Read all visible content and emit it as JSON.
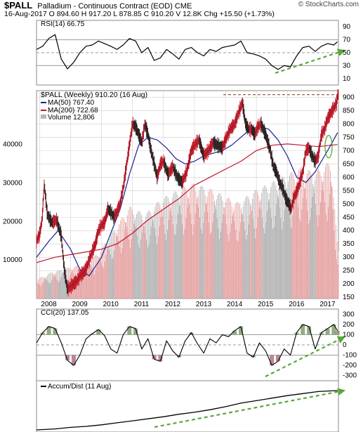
{
  "header": {
    "symbol": "$PALL",
    "name": "Palladium - Continuous Contract (EOD) CME",
    "quote_line": "16-Aug-2017   O 894.60  H 917.20  L 878.85  C 910.20  V 12.8K  Chg +15.50 (+1.73%)",
    "watermark": "© StockCharts.com"
  },
  "colors": {
    "price_up": "#c01a2a",
    "price_down": "#202020",
    "ma50": "#1b1f8f",
    "ma200": "#c0182e",
    "volume_up": "#e7a7a7",
    "volume_down": "#b7b7b7",
    "trend_arrow": "#5aa83a",
    "resistance_line": "#8b2b1a",
    "grid": "#cfcfcf"
  },
  "chart_data": [
    {
      "type": "line",
      "panel": "rsi",
      "legend": "RSI(14) 66.75",
      "yticks": [
        10,
        30,
        50,
        70,
        90
      ],
      "ylim": [
        0,
        100
      ],
      "reference_lines": [
        70,
        30
      ],
      "x": [
        2007.9,
        2008.1,
        2008.3,
        2008.5,
        2008.7,
        2008.9,
        2009.1,
        2009.3,
        2009.5,
        2009.7,
        2009.9,
        2010.1,
        2010.3,
        2010.5,
        2010.7,
        2010.9,
        2011.1,
        2011.3,
        2011.5,
        2011.7,
        2011.9,
        2012.1,
        2012.3,
        2012.5,
        2012.7,
        2012.9,
        2013.1,
        2013.3,
        2013.5,
        2013.7,
        2013.9,
        2014.1,
        2014.3,
        2014.5,
        2014.7,
        2014.9,
        2015.1,
        2015.3,
        2015.5,
        2015.7,
        2015.9,
        2016.1,
        2016.3,
        2016.5,
        2016.7,
        2016.9,
        2017.1,
        2017.3,
        2017.5,
        2017.62
      ],
      "values": [
        55,
        60,
        72,
        78,
        40,
        25,
        35,
        50,
        60,
        62,
        68,
        64,
        60,
        55,
        62,
        72,
        68,
        50,
        58,
        38,
        42,
        55,
        48,
        40,
        55,
        58,
        50,
        45,
        55,
        52,
        58,
        60,
        62,
        68,
        50,
        48,
        45,
        40,
        30,
        24,
        30,
        28,
        45,
        58,
        60,
        52,
        60,
        64,
        62,
        67
      ]
    },
    {
      "type": "line",
      "panel": "price",
      "title": "$PALL (Weekly) 910.20 (16 Aug)",
      "xticks": [
        "2008",
        "2009",
        "2010",
        "2011",
        "2012",
        "2013",
        "2014",
        "2015",
        "2016",
        "2017"
      ],
      "xlim": [
        2007.9,
        2017.65
      ],
      "ylim": [
        145,
        925
      ],
      "yticks": [
        150,
        200,
        250,
        300,
        350,
        400,
        450,
        500,
        550,
        600,
        650,
        700,
        750,
        800,
        850,
        900
      ],
      "volume_ticks": [
        10000,
        20000,
        30000,
        40000
      ],
      "volume_max": 54000,
      "resistance_level": 910,
      "series": [
        {
          "name": "Price",
          "x": [
            2007.9,
            2008.0,
            2008.08,
            2008.15,
            2008.25,
            2008.4,
            2008.55,
            2008.7,
            2008.8,
            2008.9,
            2009.0,
            2009.1,
            2009.2,
            2009.3,
            2009.4,
            2009.5,
            2009.6,
            2009.7,
            2009.8,
            2009.9,
            2010.0,
            2010.1,
            2010.2,
            2010.3,
            2010.4,
            2010.5,
            2010.6,
            2010.7,
            2010.8,
            2010.9,
            2011.0,
            2011.1,
            2011.2,
            2011.3,
            2011.4,
            2011.5,
            2011.6,
            2011.7,
            2011.8,
            2011.9,
            2012.0,
            2012.15,
            2012.3,
            2012.45,
            2012.6,
            2012.75,
            2012.9,
            2013.0,
            2013.15,
            2013.3,
            2013.45,
            2013.6,
            2013.75,
            2013.9,
            2014.0,
            2014.15,
            2014.3,
            2014.45,
            2014.55,
            2014.65,
            2014.75,
            2014.85,
            2014.95,
            2015.05,
            2015.15,
            2015.3,
            2015.45,
            2015.55,
            2015.65,
            2015.75,
            2015.85,
            2015.95,
            2016.05,
            2016.12,
            2016.2,
            2016.35,
            2016.5,
            2016.6,
            2016.7,
            2016.8,
            2016.9,
            2017.0,
            2017.1,
            2017.2,
            2017.3,
            2017.4,
            2017.5,
            2017.6,
            2017.62
          ],
          "values": [
            360,
            385,
            440,
            575,
            460,
            430,
            440,
            380,
            250,
            180,
            190,
            200,
            210,
            230,
            240,
            255,
            290,
            320,
            350,
            400,
            420,
            430,
            480,
            470,
            450,
            470,
            500,
            560,
            640,
            720,
            800,
            790,
            760,
            730,
            800,
            760,
            700,
            650,
            600,
            650,
            660,
            610,
            640,
            600,
            580,
            620,
            700,
            720,
            740,
            680,
            700,
            730,
            720,
            710,
            740,
            780,
            800,
            850,
            880,
            800,
            780,
            780,
            760,
            790,
            800,
            760,
            700,
            640,
            620,
            580,
            560,
            520,
            500,
            480,
            520,
            560,
            620,
            700,
            710,
            680,
            660,
            680,
            760,
            780,
            820,
            840,
            860,
            880,
            910.2
          ]
        },
        {
          "name": "MA(50) 767.40",
          "x": [
            2007.9,
            2008.3,
            2008.6,
            2009.0,
            2009.3,
            2009.6,
            2010.0,
            2010.3,
            2010.6,
            2010.9,
            2011.2,
            2011.5,
            2011.8,
            2012.1,
            2012.4,
            2012.7,
            2013.0,
            2013.3,
            2013.6,
            2013.9,
            2014.2,
            2014.5,
            2014.8,
            2015.1,
            2015.4,
            2015.7,
            2016.0,
            2016.3,
            2016.6,
            2016.9,
            2017.2,
            2017.4,
            2017.62
          ],
          "values": [
            300,
            360,
            400,
            330,
            255,
            230,
            300,
            390,
            480,
            610,
            720,
            750,
            740,
            710,
            670,
            650,
            660,
            680,
            690,
            700,
            720,
            750,
            780,
            790,
            780,
            740,
            680,
            600,
            580,
            620,
            680,
            720,
            767.4
          ]
        },
        {
          "name": "MA(200) 722.68",
          "x": [
            2007.9,
            2008.5,
            2009.0,
            2009.5,
            2010.0,
            2010.5,
            2011.0,
            2011.5,
            2012.0,
            2012.5,
            2013.0,
            2013.5,
            2014.0,
            2014.5,
            2015.0,
            2015.5,
            2016.0,
            2016.5,
            2017.0,
            2017.62
          ],
          "values": [
            280,
            300,
            310,
            320,
            330,
            350,
            390,
            440,
            480,
            520,
            570,
            600,
            630,
            660,
            700,
            720,
            725,
            720,
            715,
            722.68
          ]
        },
        {
          "name": "Volume 12,806",
          "x": [
            2007.9,
            2008.4,
            2008.9,
            2009.4,
            2009.9,
            2010.4,
            2010.9,
            2011.4,
            2011.9,
            2012.4,
            2012.9,
            2013.4,
            2013.9,
            2014.4,
            2014.9,
            2015.4,
            2015.9,
            2016.4,
            2016.9,
            2017.4,
            2017.62
          ],
          "values": [
            5000,
            7000,
            8000,
            9000,
            12000,
            18000,
            24000,
            22000,
            26000,
            28000,
            30000,
            29000,
            27000,
            25000,
            28000,
            30000,
            32000,
            34000,
            33000,
            36000,
            12806
          ]
        }
      ]
    },
    {
      "type": "line",
      "panel": "cci",
      "legend": "CCI(20) 137.05",
      "ylim": [
        -350,
        350
      ],
      "yticks": [
        -300,
        -200,
        -100,
        0,
        100,
        200,
        300
      ],
      "reference_lines": [
        100,
        -100
      ],
      "x": [
        2007.9,
        2008.1,
        2008.3,
        2008.5,
        2008.7,
        2008.9,
        2009.1,
        2009.3,
        2009.5,
        2009.7,
        2009.9,
        2010.1,
        2010.3,
        2010.5,
        2010.7,
        2010.9,
        2011.1,
        2011.3,
        2011.5,
        2011.7,
        2011.9,
        2012.1,
        2012.3,
        2012.5,
        2012.7,
        2012.9,
        2013.1,
        2013.3,
        2013.5,
        2013.7,
        2013.9,
        2014.1,
        2014.3,
        2014.5,
        2014.7,
        2014.9,
        2015.1,
        2015.3,
        2015.5,
        2015.7,
        2015.9,
        2016.1,
        2016.3,
        2016.5,
        2016.7,
        2016.9,
        2017.1,
        2017.3,
        2017.5,
        2017.62
      ],
      "values": [
        20,
        120,
        180,
        160,
        20,
        -150,
        -200,
        -100,
        60,
        110,
        150,
        90,
        -40,
        -80,
        100,
        180,
        160,
        -40,
        60,
        -140,
        -160,
        40,
        -60,
        -120,
        40,
        120,
        10,
        -80,
        60,
        20,
        100,
        80,
        140,
        180,
        -80,
        -120,
        20,
        -60,
        -200,
        -160,
        -40,
        -100,
        120,
        200,
        180,
        -40,
        120,
        160,
        200,
        137.05
      ]
    },
    {
      "type": "line",
      "panel": "accum_dist",
      "legend": "Accum/Dist (11 Aug)",
      "x": [
        2007.9,
        2008.5,
        2009.0,
        2009.5,
        2010.0,
        2010.5,
        2011.0,
        2011.5,
        2012.0,
        2012.5,
        2013.0,
        2013.5,
        2014.0,
        2014.5,
        2015.0,
        2015.5,
        2016.0,
        2016.5,
        2017.0,
        2017.62
      ],
      "values": [
        2,
        4,
        7,
        9,
        12,
        16,
        20,
        24,
        28,
        33,
        37,
        42,
        48,
        55,
        60,
        65,
        70,
        74,
        78,
        80
      ]
    }
  ]
}
